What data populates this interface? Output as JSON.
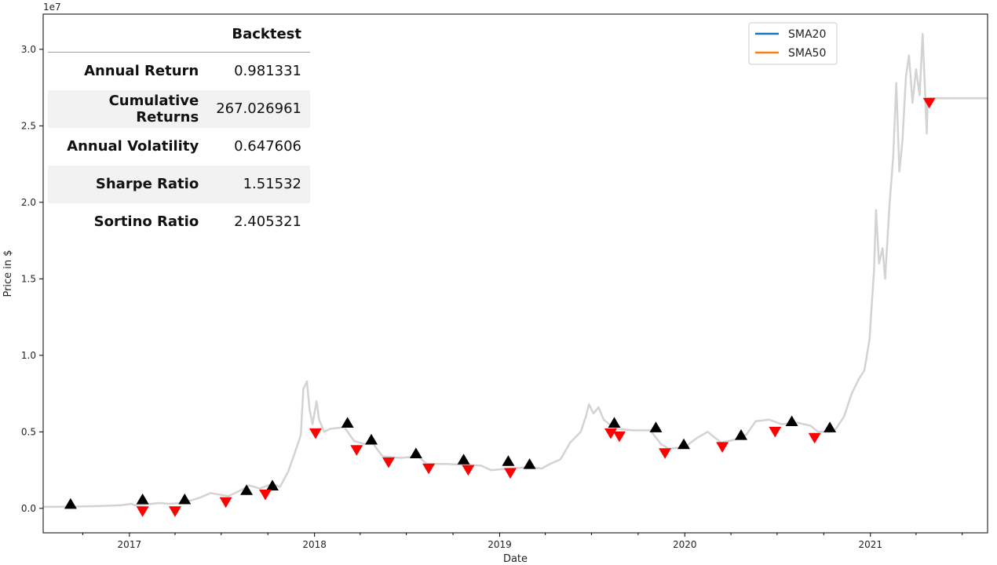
{
  "chart_data": {
    "type": "line",
    "xlabel": "Date",
    "ylabel": "Price in $",
    "y_offset_label": "1e7",
    "xlim": [
      "2016-07-15",
      "2021-08-20"
    ],
    "ylim": [
      -1600000,
      32300000
    ],
    "x_ticks": [
      {
        "date": "2017-01-01",
        "label": "2017"
      },
      {
        "date": "2018-01-01",
        "label": "2018"
      },
      {
        "date": "2019-01-01",
        "label": "2019"
      },
      {
        "date": "2020-01-01",
        "label": "2020"
      },
      {
        "date": "2021-01-01",
        "label": "2021"
      }
    ],
    "y_ticks": [
      {
        "value": 0,
        "label": "0.0"
      },
      {
        "value": 5000000,
        "label": "0.5"
      },
      {
        "value": 10000000,
        "label": "1.0"
      },
      {
        "value": 15000000,
        "label": "1.5"
      },
      {
        "value": 20000000,
        "label": "2.0"
      },
      {
        "value": 25000000,
        "label": "2.5"
      },
      {
        "value": 30000000,
        "label": "3.0"
      }
    ],
    "legend": {
      "placement": "top-right",
      "entries": [
        {
          "name": "SMA20",
          "color": "#1f77b4"
        },
        {
          "name": "SMA50",
          "color": "#ff7f0e"
        }
      ]
    },
    "series": [
      {
        "role": "price",
        "color": "#d3d3d3",
        "points": [
          [
            "2016-07-15",
            100000
          ],
          [
            "2016-09-01",
            110000
          ],
          [
            "2016-11-01",
            150000
          ],
          [
            "2016-12-15",
            200000
          ],
          [
            "2017-01-05",
            300000
          ],
          [
            "2017-01-12",
            200000
          ],
          [
            "2017-02-01",
            250000
          ],
          [
            "2017-03-01",
            350000
          ],
          [
            "2017-03-20",
            300000
          ],
          [
            "2017-04-15",
            350000
          ],
          [
            "2017-05-20",
            700000
          ],
          [
            "2017-06-10",
            1000000
          ],
          [
            "2017-07-15",
            800000
          ],
          [
            "2017-08-10",
            1200000
          ],
          [
            "2017-08-25",
            1500000
          ],
          [
            "2017-09-15",
            1300000
          ],
          [
            "2017-10-10",
            1600000
          ],
          [
            "2017-10-25",
            1400000
          ],
          [
            "2017-11-10",
            2400000
          ],
          [
            "2017-11-25",
            3800000
          ],
          [
            "2017-12-05",
            4800000
          ],
          [
            "2017-12-10",
            7800000
          ],
          [
            "2017-12-17",
            8300000
          ],
          [
            "2017-12-22",
            6500000
          ],
          [
            "2017-12-28",
            5500000
          ],
          [
            "2018-01-05",
            7000000
          ],
          [
            "2018-01-10",
            5800000
          ],
          [
            "2018-01-20",
            5000000
          ],
          [
            "2018-02-01",
            5200000
          ],
          [
            "2018-03-01",
            5300000
          ],
          [
            "2018-03-20",
            4400000
          ],
          [
            "2018-04-10",
            4200000
          ],
          [
            "2018-04-25",
            4300000
          ],
          [
            "2018-05-15",
            3400000
          ],
          [
            "2018-06-20",
            3300000
          ],
          [
            "2018-07-25",
            3400000
          ],
          [
            "2018-08-10",
            2900000
          ],
          [
            "2018-09-20",
            2900000
          ],
          [
            "2018-10-20",
            2850000
          ],
          [
            "2018-11-25",
            2800000
          ],
          [
            "2018-12-15",
            2500000
          ],
          [
            "2019-01-20",
            2600000
          ],
          [
            "2019-03-01",
            2700000
          ],
          [
            "2019-03-25",
            2600000
          ],
          [
            "2019-04-10",
            2900000
          ],
          [
            "2019-05-01",
            3200000
          ],
          [
            "2019-05-20",
            4300000
          ],
          [
            "2019-06-10",
            5000000
          ],
          [
            "2019-06-20",
            6000000
          ],
          [
            "2019-06-26",
            6800000
          ],
          [
            "2019-07-05",
            6200000
          ],
          [
            "2019-07-15",
            6600000
          ],
          [
            "2019-07-25",
            5800000
          ],
          [
            "2019-08-05",
            5500000
          ],
          [
            "2019-08-20",
            5200000
          ],
          [
            "2019-09-20",
            5100000
          ],
          [
            "2019-10-25",
            5100000
          ],
          [
            "2019-11-15",
            4200000
          ],
          [
            "2019-12-01",
            3900000
          ],
          [
            "2020-01-01",
            4000000
          ],
          [
            "2020-01-25",
            4600000
          ],
          [
            "2020-02-15",
            5000000
          ],
          [
            "2020-03-05",
            4500000
          ],
          [
            "2020-03-12",
            4300000
          ],
          [
            "2020-04-10",
            4500000
          ],
          [
            "2020-05-01",
            4800000
          ],
          [
            "2020-05-20",
            5700000
          ],
          [
            "2020-06-15",
            5800000
          ],
          [
            "2020-07-10",
            5500000
          ],
          [
            "2020-08-10",
            5600000
          ],
          [
            "2020-09-05",
            5400000
          ],
          [
            "2020-09-20",
            5000000
          ],
          [
            "2020-10-15",
            5000000
          ],
          [
            "2020-10-25",
            5200000
          ],
          [
            "2020-11-10",
            6000000
          ],
          [
            "2020-11-25",
            7500000
          ],
          [
            "2020-12-10",
            8500000
          ],
          [
            "2020-12-20",
            9000000
          ],
          [
            "2020-12-30",
            11000000
          ],
          [
            "2021-01-08",
            15500000
          ],
          [
            "2021-01-12",
            19500000
          ],
          [
            "2021-01-18",
            16000000
          ],
          [
            "2021-01-25",
            17000000
          ],
          [
            "2021-01-30",
            15000000
          ],
          [
            "2021-02-08",
            20000000
          ],
          [
            "2021-02-15",
            23000000
          ],
          [
            "2021-02-21",
            27800000
          ],
          [
            "2021-02-27",
            22000000
          ],
          [
            "2021-03-05",
            24000000
          ],
          [
            "2021-03-12",
            28200000
          ],
          [
            "2021-03-18",
            29600000
          ],
          [
            "2021-03-25",
            26500000
          ],
          [
            "2021-04-01",
            28700000
          ],
          [
            "2021-04-08",
            27000000
          ],
          [
            "2021-04-14",
            31000000
          ],
          [
            "2021-04-18",
            27800000
          ],
          [
            "2021-04-22",
            24500000
          ],
          [
            "2021-04-24",
            26800000
          ],
          [
            "2021-08-20",
            26800000
          ]
        ]
      }
    ],
    "buy_signals": [
      [
        "2016-09-07",
        300000
      ],
      [
        "2017-01-27",
        600000
      ],
      [
        "2017-04-20",
        600000
      ],
      [
        "2017-08-20",
        1200000
      ],
      [
        "2017-10-10",
        1500000
      ],
      [
        "2018-03-07",
        5600000
      ],
      [
        "2018-04-23",
        4500000
      ],
      [
        "2018-07-20",
        3600000
      ],
      [
        "2018-10-22",
        3200000
      ],
      [
        "2019-01-18",
        3100000
      ],
      [
        "2019-03-01",
        2900000
      ],
      [
        "2019-08-15",
        5600000
      ],
      [
        "2019-11-05",
        5300000
      ],
      [
        "2019-12-30",
        4200000
      ],
      [
        "2020-04-21",
        4800000
      ],
      [
        "2020-07-30",
        5700000
      ],
      [
        "2020-10-13",
        5300000
      ]
    ],
    "sell_signals": [
      [
        "2017-01-27",
        -200000
      ],
      [
        "2017-04-01",
        -200000
      ],
      [
        "2017-07-10",
        400000
      ],
      [
        "2017-09-26",
        900000
      ],
      [
        "2018-01-03",
        4900000
      ],
      [
        "2018-03-25",
        3800000
      ],
      [
        "2018-05-27",
        3000000
      ],
      [
        "2018-08-14",
        2600000
      ],
      [
        "2018-10-31",
        2500000
      ],
      [
        "2019-01-22",
        2300000
      ],
      [
        "2019-08-08",
        4900000
      ],
      [
        "2019-08-25",
        4700000
      ],
      [
        "2019-11-23",
        3600000
      ],
      [
        "2020-03-15",
        4000000
      ],
      [
        "2020-06-27",
        5000000
      ],
      [
        "2020-09-13",
        4600000
      ],
      [
        "2021-04-27",
        26500000
      ]
    ]
  },
  "backtest_table": {
    "header": "Backtest",
    "rows": [
      {
        "label": "Annual Return",
        "value": "0.981331"
      },
      {
        "label": "Cumulative Returns",
        "value": "267.026961"
      },
      {
        "label": "Annual Volatility",
        "value": "0.647606"
      },
      {
        "label": "Sharpe Ratio",
        "value": "1.51532"
      },
      {
        "label": "Sortino Ratio",
        "value": "2.405321"
      }
    ]
  }
}
